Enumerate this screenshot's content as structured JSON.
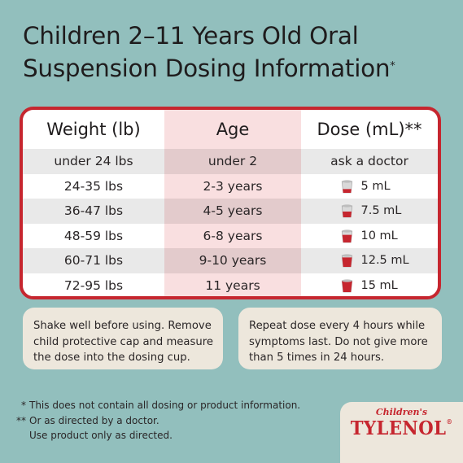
{
  "title": {
    "line1": "Children 2–11 Years Old Oral",
    "line2": "Suspension Dosing Information",
    "mark": "*"
  },
  "table": {
    "headers": [
      "Weight (lb)",
      "Age",
      "Dose (mL)**"
    ],
    "rows": [
      {
        "weight": "under 24 lbs",
        "age": "under 2",
        "dose": "ask a doctor",
        "fill": 0
      },
      {
        "weight": "24-35 lbs",
        "age": "2-3 years",
        "dose": "5 mL",
        "fill": 0.33
      },
      {
        "weight": "36-47 lbs",
        "age": "4-5 years",
        "dose": "7.5 mL",
        "fill": 0.5
      },
      {
        "weight": "48-59 lbs",
        "age": "6-8 years",
        "dose": "10 mL",
        "fill": 0.67
      },
      {
        "weight": "60-71 lbs",
        "age": "9-10 years",
        "dose": "12.5 mL",
        "fill": 0.83
      },
      {
        "weight": "72-95 lbs",
        "age": "11 years",
        "dose": "15 mL",
        "fill": 1.0
      }
    ]
  },
  "notes": {
    "left": "Shake well before using. Remove child protective cap and measure the dose into the dosing cup.",
    "right": "Repeat dose every 4 hours while symptoms last. Do not give more than 5 times in 24 hours."
  },
  "footnotes": [
    {
      "mark": "*",
      "lines": [
        "This does not contain all dosing or product information."
      ]
    },
    {
      "mark": "**",
      "lines": [
        "Or as directed by a doctor.",
        "Use product only as directed."
      ]
    }
  ],
  "brand": {
    "small": "Children's",
    "big": "TYLENOL",
    "trademark": "®"
  },
  "colors": {
    "background": "#92bfbd",
    "accent_red": "#c6262f",
    "age_column": "#f9dfe0",
    "note_bg": "#ede7dc"
  }
}
